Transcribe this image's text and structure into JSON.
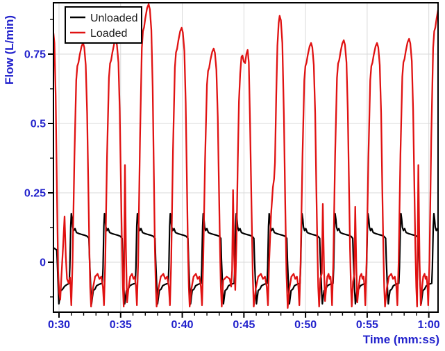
{
  "chart_data": {
    "type": "line",
    "title": "",
    "xlabel": "Time (mm:ss)",
    "ylabel": "Flow (L/min)",
    "xlim": [
      29.55,
      60.75
    ],
    "ylim": [
      -0.18,
      0.935
    ],
    "x_major_ticks": [
      {
        "t": 30,
        "label": "0:30"
      },
      {
        "t": 35,
        "label": "0:35"
      },
      {
        "t": 40,
        "label": "0:40"
      },
      {
        "t": 45,
        "label": "0:45"
      },
      {
        "t": 50,
        "label": "0:50"
      },
      {
        "t": 55,
        "label": "0:55"
      },
      {
        "t": 60,
        "label": "1:00"
      }
    ],
    "x_minor_step": 1,
    "y_major_ticks": [
      {
        "v": 0,
        "label": "0"
      },
      {
        "v": 0.25,
        "label": "0.25"
      },
      {
        "v": 0.5,
        "label": "0.5"
      },
      {
        "v": 0.75,
        "label": "0.75"
      }
    ],
    "y_minor_ticks": [
      -0.125,
      0.125,
      0.375,
      0.625,
      0.875
    ],
    "grid": {
      "show": true,
      "color": "#d9d9d9",
      "width": 1
    },
    "axes_style": {
      "spine_color": "#000000",
      "spine_width": 2,
      "tick_color": "#000000",
      "major_tick_len": 8,
      "minor_tick_len": 5,
      "label_color": "#2222cc"
    },
    "legend": {
      "position": "top-left",
      "border_color": "#000000",
      "background": "#ffffff",
      "entries": [
        {
          "label": "Unloaded",
          "color": "#000000"
        },
        {
          "label": "Loaded",
          "color": "#e01212"
        }
      ]
    },
    "series": [
      {
        "name": "Unloaded",
        "color": "#000000",
        "width": 2.2,
        "model": {
          "leadin": [
            [
              29.55,
              0.052
            ],
            [
              29.82,
              0.044
            ],
            [
              29.87,
              -0.01
            ],
            [
              29.92,
              -0.07
            ],
            [
              29.99,
              -0.15
            ],
            [
              30.07,
              -0.128
            ],
            [
              30.13,
              -0.104
            ],
            [
              30.3,
              -0.097
            ],
            [
              30.45,
              -0.087
            ],
            [
              30.63,
              -0.081
            ],
            [
              30.83,
              -0.076
            ]
          ],
          "peak_times": [
            31.0,
            33.69,
            36.36,
            39.03,
            41.7,
            44.38,
            47.05,
            49.72,
            52.4,
            55.07,
            57.74,
            60.41
          ],
          "peak_value": 0.175,
          "cycle_template": [
            [
              -0.17,
              -0.076
            ],
            [
              -0.12,
              -0.02
            ],
            [
              -0.05,
              0.13
            ],
            [
              0,
              0.175
            ],
            [
              0.06,
              0.155
            ],
            [
              0.11,
              0.127
            ],
            [
              0.2,
              0.114
            ],
            [
              0.3,
              0.121
            ],
            [
              0.42,
              0.107
            ],
            [
              0.62,
              0.103
            ],
            [
              0.85,
              0.1
            ],
            [
              1.1,
              0.097
            ],
            [
              1.3,
              0.093
            ],
            [
              1.43,
              0.086
            ],
            [
              1.48,
              0.01
            ],
            [
              1.53,
              -0.045
            ],
            [
              1.58,
              -0.1
            ],
            [
              1.64,
              -0.15
            ],
            [
              1.71,
              -0.125
            ],
            [
              1.78,
              -0.102
            ],
            [
              1.92,
              -0.097
            ],
            [
              2.05,
              -0.085
            ],
            [
              2.2,
              -0.081
            ],
            [
              2.36,
              -0.078
            ],
            [
              2.5,
              -0.076
            ]
          ]
        }
      },
      {
        "name": "Loaded",
        "color": "#e01212",
        "width": 2.3,
        "model": {
          "rise_fall_template": [
            [
              -0.95,
              -0.155,
              "a"
            ],
            [
              -0.85,
              0,
              "a"
            ],
            [
              -0.7,
              0.48,
              "f"
            ],
            [
              -0.55,
              0.83,
              "f"
            ],
            [
              -0.46,
              0.895,
              "f"
            ],
            [
              -0.37,
              0.91,
              "f"
            ],
            [
              -0.27,
              0.945,
              "f"
            ],
            [
              -0.12,
              0.985,
              "f"
            ],
            [
              0,
              1,
              "f"
            ],
            [
              0.1,
              0.98,
              "f"
            ],
            [
              0.22,
              0.9,
              "f"
            ],
            [
              0.33,
              0.68,
              "f"
            ],
            [
              0.43,
              0.33,
              "f"
            ],
            [
              0.51,
              0.05,
              "a"
            ],
            [
              0.58,
              -0.09,
              "a"
            ],
            [
              0.65,
              -0.16,
              "a"
            ]
          ],
          "bridge_template": [
            [
              0.12,
              -0.095
            ],
            [
              0.3,
              -0.052
            ],
            [
              0.5,
              -0.042
            ],
            [
              0.65,
              -0.06
            ],
            [
              0.8,
              -0.052
            ],
            [
              0.93,
              -0.088
            ]
          ],
          "segments": [
            {
              "pts": [
                [
                  29.55,
                  0.825
                ],
                [
                  29.63,
                  0.79
                ],
                [
                  29.73,
                  0.6
                ],
                [
                  29.83,
                  0.26
                ],
                [
                  29.93,
                  -0.03
                ],
                [
                  30.02,
                  -0.11
                ],
                [
                  30.1,
                  -0.135
                ],
                [
                  30.2,
                  -0.05
                ],
                [
                  30.32,
                  0.05
                ],
                [
                  30.45,
                  0.165
                ],
                [
                  30.55,
                  0.02
                ],
                [
                  30.65,
                  -0.06
                ],
                [
                  30.78,
                  -0.075
                ],
                [
                  30.9,
                  -0.055
                ],
                [
                  31.0,
                  -0.155
                ]
              ]
            },
            {
              "apex": 31.95,
              "h": 0.79
            },
            {
              "apex": 34.6,
              "h": 0.8
            },
            {
              "pts": [
                [
                  35.28,
                  -0.05
                ],
                [
                  35.35,
                  0.35
                ],
                [
                  35.43,
                  0.05
                ],
                [
                  35.52,
                  -0.145
                ]
              ]
            },
            {
              "apex": 37.27,
              "h": 0.93
            },
            {
              "apex": 39.95,
              "h": 0.845
            },
            {
              "apex": 42.55,
              "h": 0.77
            },
            {
              "pts": [
                [
                  43.32,
                  -0.065
                ],
                [
                  43.6,
                  -0.052
                ],
                [
                  43.85,
                  -0.06
                ],
                [
                  43.97,
                  -0.088
                ],
                [
                  44.04,
                  -0.03
                ],
                [
                  44.12,
                  0.26
                ],
                [
                  44.2,
                  0.03
                ],
                [
                  44.3,
                  -0.1
                ]
              ]
            },
            {
              "pts": [
                [
                  44.4,
                  0.08
                ],
                [
                  44.5,
                  0.36
                ],
                [
                  44.6,
                  0.58
                ],
                [
                  44.7,
                  0.68
                ],
                [
                  44.8,
                  0.74
                ],
                [
                  44.88,
                  0.745
                ],
                [
                  45.0,
                  0.722
                ],
                [
                  45.1,
                  0.718
                ],
                [
                  45.2,
                  0.75
                ],
                [
                  45.3,
                  0.765
                ],
                [
                  45.4,
                  0.72
                ],
                [
                  45.5,
                  0.5
                ],
                [
                  45.62,
                  0.2
                ],
                [
                  45.72,
                  -0.05
                ],
                [
                  45.8,
                  -0.16
                ]
              ]
            },
            {
              "pts": [
                [
                  46.95,
                  -0.155
                ],
                [
                  47.05,
                  0.0
                ],
                [
                  47.2,
                  0.17
                ],
                [
                  47.35,
                  0.27
                ],
                [
                  47.45,
                  0.3
                ],
                [
                  47.52,
                  0.36
                ],
                [
                  47.62,
                  0.6
                ],
                [
                  47.72,
                  0.78
                ],
                [
                  47.82,
                  0.862
                ],
                [
                  47.9,
                  0.888
                ],
                [
                  48.0,
                  0.872
                ],
                [
                  48.12,
                  0.79
                ],
                [
                  48.25,
                  0.52
                ],
                [
                  48.35,
                  0.22
                ],
                [
                  48.45,
                  -0.04
                ],
                [
                  48.55,
                  -0.165
                ]
              ]
            },
            {
              "apex": 50.45,
              "h": 0.79
            },
            {
              "pts": [
                [
                  51.2,
                  -0.06
                ],
                [
                  51.32,
                  -0.04
                ],
                [
                  51.4,
                  0.21
                ],
                [
                  51.5,
                  -0.03
                ],
                [
                  51.58,
                  -0.14
                ]
              ]
            },
            {
              "apex": 53.1,
              "h": 0.8
            },
            {
              "pts": [
                [
                  53.85,
                  -0.07
                ],
                [
                  53.95,
                  -0.045
                ],
                [
                  54.03,
                  0.2
                ],
                [
                  54.12,
                  -0.02
                ],
                [
                  54.2,
                  -0.145
                ]
              ]
            },
            {
              "apex": 55.8,
              "h": 0.79
            },
            {
              "apex": 58.4,
              "h": 0.805
            },
            {
              "pts": [
                [
                  59.08,
                  -0.04
                ],
                [
                  59.15,
                  0.35
                ],
                [
                  59.25,
                  0.0
                ],
                [
                  59.35,
                  -0.155
                ]
              ]
            },
            {
              "apex": 60.9,
              "h": 0.93
            }
          ]
        }
      }
    ]
  }
}
